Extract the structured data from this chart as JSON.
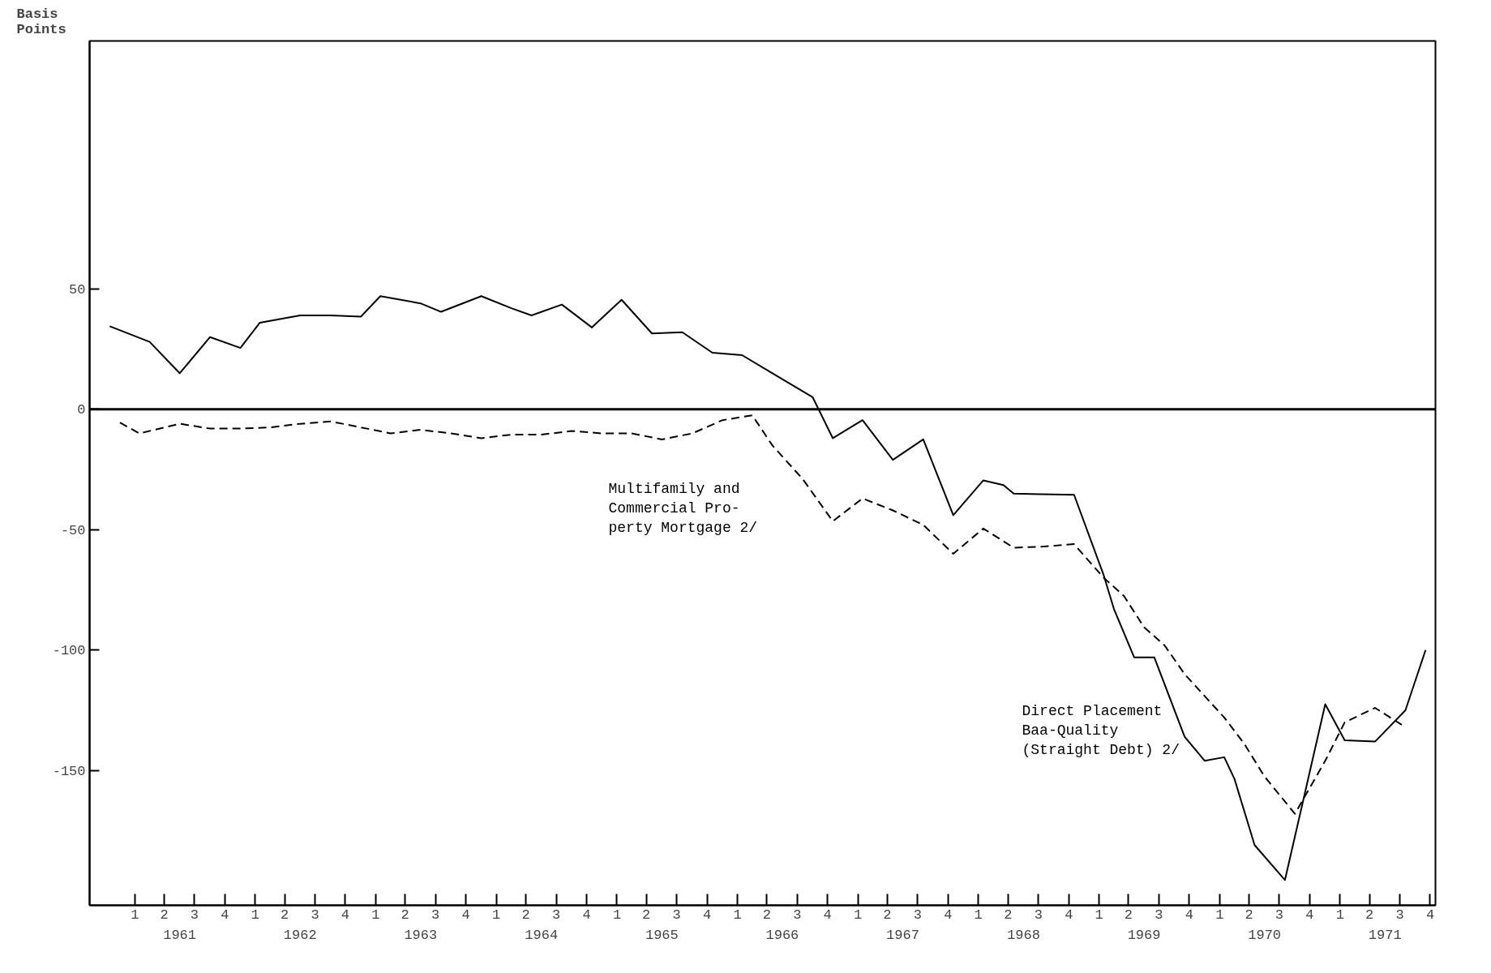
{
  "chart_data": {
    "type": "line",
    "ylabel": "Basis\nPoints",
    "xlim": [
      "1960-10",
      "1971-12"
    ],
    "ylim": [
      -206,
      153
    ],
    "yticks": [
      50,
      0,
      -50,
      -100,
      -150
    ],
    "xticks": [
      {
        "value": "1961-02-15",
        "label": "1"
      },
      {
        "value": "1961-05-15",
        "label": "2"
      },
      {
        "value": "1961-08-15",
        "label": "3"
      },
      {
        "value": "1961-11-15",
        "label": "4"
      },
      {
        "value": "1962-02-15",
        "label": "1"
      },
      {
        "value": "1962-05-15",
        "label": "2"
      },
      {
        "value": "1962-08-15",
        "label": "3"
      },
      {
        "value": "1962-11-15",
        "label": "4"
      },
      {
        "value": "1963-02-15",
        "label": "1"
      },
      {
        "value": "1963-05-15",
        "label": "2"
      },
      {
        "value": "1963-08-15",
        "label": "3"
      },
      {
        "value": "1963-11-15",
        "label": "4"
      },
      {
        "value": "1964-02-15",
        "label": "1"
      },
      {
        "value": "1964-05-15",
        "label": "2"
      },
      {
        "value": "1964-08-15",
        "label": "3"
      },
      {
        "value": "1964-11-15",
        "label": "4"
      },
      {
        "value": "1965-02-15",
        "label": "1"
      },
      {
        "value": "1965-05-15",
        "label": "2"
      },
      {
        "value": "1965-08-15",
        "label": "3"
      },
      {
        "value": "1965-11-15",
        "label": "4"
      },
      {
        "value": "1966-02-15",
        "label": "1"
      },
      {
        "value": "1966-05-15",
        "label": "2"
      },
      {
        "value": "1966-08-15",
        "label": "3"
      },
      {
        "value": "1966-11-15",
        "label": "4"
      },
      {
        "value": "1967-02-15",
        "label": "1"
      },
      {
        "value": "1967-05-15",
        "label": "2"
      },
      {
        "value": "1967-08-15",
        "label": "3"
      },
      {
        "value": "1967-11-15",
        "label": "4"
      },
      {
        "value": "1968-02-15",
        "label": "1"
      },
      {
        "value": "1968-05-15",
        "label": "2"
      },
      {
        "value": "1968-08-15",
        "label": "3"
      },
      {
        "value": "1968-11-15",
        "label": "4"
      },
      {
        "value": "1969-02-15",
        "label": "1"
      },
      {
        "value": "1969-05-15",
        "label": "2"
      },
      {
        "value": "1969-08-15",
        "label": "3"
      },
      {
        "value": "1969-11-15",
        "label": "4"
      },
      {
        "value": "1970-02-15",
        "label": "1"
      },
      {
        "value": "1970-05-15",
        "label": "2"
      },
      {
        "value": "1970-08-15",
        "label": "3"
      },
      {
        "value": "1970-11-15",
        "label": "4"
      },
      {
        "value": "1971-02-15",
        "label": "1"
      },
      {
        "value": "1971-05-15",
        "label": "2"
      },
      {
        "value": "1971-08-15",
        "label": "3"
      },
      {
        "value": "1971-11-15",
        "label": "4"
      }
    ],
    "x2lim": [
      "1960-10",
      "1971-12"
    ],
    "x2ticks": [
      {
        "value": "1961-07-01",
        "label": "1961"
      },
      {
        "value": "1962-07-01",
        "label": "1962"
      },
      {
        "value": "1963-07-01",
        "label": "1963"
      },
      {
        "value": "1964-07-01",
        "label": "1964"
      },
      {
        "value": "1965-07-01",
        "label": "1965"
      },
      {
        "value": "1966-07-01",
        "label": "1966"
      },
      {
        "value": "1967-07-01",
        "label": "1967"
      },
      {
        "value": "1968-07-01",
        "label": "1968"
      },
      {
        "value": "1969-07-01",
        "label": "1969"
      },
      {
        "value": "1970-07-01",
        "label": "1970"
      },
      {
        "value": "1971-07-01",
        "label": "1971"
      }
    ],
    "ref_lines": [
      {
        "axis": "y",
        "value": 0,
        "color": "#000000"
      }
    ],
    "grid": false,
    "series": [
      {
        "name": "Direct Placement\nBaa-Quality\n   (Straight Debt) 2/",
        "color": "#000000",
        "line_style": "solid",
        "x": [
          "1960-12",
          "1961-04",
          "1961-07",
          "1961-10",
          "1962-01",
          "1962-03",
          "1962-07",
          "1962-10",
          "1963-01",
          "1963-03",
          "1963-07",
          "1963-09",
          "1964-01",
          "1964-04",
          "1964-06",
          "1964-09",
          "1964-12",
          "1965-03",
          "1965-06",
          "1965-09",
          "1965-12",
          "1966-03",
          "1966-06",
          "1966-10",
          "1966-12",
          "1967-03",
          "1967-06",
          "1967-09",
          "1967-12",
          "1968-03",
          "1968-05",
          "1968-06",
          "1968-12",
          "1969-03",
          "1969-04",
          "1969-06",
          "1969-08",
          "1969-11",
          "1970-01",
          "1970-03",
          "1970-04",
          "1970-06",
          "1970-09",
          "1971-01",
          "1971-03",
          "1971-06",
          "1971-09",
          "1971-11"
        ],
        "values": [
          34.5,
          28,
          15,
          30,
          25.5,
          36,
          39,
          39,
          38.5,
          47,
          44,
          40.5,
          47,
          42,
          39,
          43.5,
          34,
          45.5,
          31.5,
          32,
          23.5,
          22.5,
          15,
          5,
          -12,
          -4.5,
          -21,
          -12.5,
          -44,
          -29.5,
          -31.5,
          -35,
          -35.5,
          -69,
          -83,
          -103,
          -103,
          -136,
          -146,
          -144.5,
          -153.5,
          -181,
          -195.5,
          -122.5,
          -137.5,
          -138,
          -125,
          -100
        ]
      },
      {
        "name": "Multifamily and\nCommercial Pro-\nperty Mortgage 2/",
        "color": "#000000",
        "line_style": "dashed",
        "x": [
          "1961-01",
          "1961-03",
          "1961-07",
          "1961-10",
          "1962-01",
          "1962-04",
          "1962-07",
          "1962-10",
          "1963-01",
          "1963-04",
          "1963-07",
          "1963-10",
          "1964-01",
          "1964-04",
          "1964-07",
          "1964-10",
          "1965-01",
          "1965-04",
          "1965-07",
          "1965-10",
          "1966-01",
          "1966-04",
          "1966-06",
          "1966-09",
          "1966-12",
          "1967-03",
          "1967-06",
          "1967-09",
          "1967-12",
          "1968-03",
          "1968-06",
          "1968-09",
          "1968-12",
          "1969-03",
          "1969-05",
          "1969-07",
          "1969-09",
          "1969-11",
          "1970-03",
          "1970-05",
          "1970-07",
          "1970-10",
          "1971-01",
          "1971-03",
          "1971-06",
          "1971-09"
        ],
        "values": [
          -5.5,
          -10,
          -6,
          -8,
          -8,
          -7.5,
          -6,
          -5,
          -7.5,
          -10,
          -8.5,
          -10,
          -12,
          -10.5,
          -10.5,
          -9,
          -10,
          -10,
          -12.5,
          -10,
          -4.5,
          -2.5,
          -15,
          -29,
          -46.5,
          -37,
          -42,
          -48,
          -60,
          -49.5,
          -57.5,
          -57,
          -56,
          -70,
          -77.5,
          -90.5,
          -98,
          -110,
          -128,
          -139,
          -152.5,
          -168,
          -146,
          -130,
          -124,
          -132
        ]
      }
    ]
  }
}
